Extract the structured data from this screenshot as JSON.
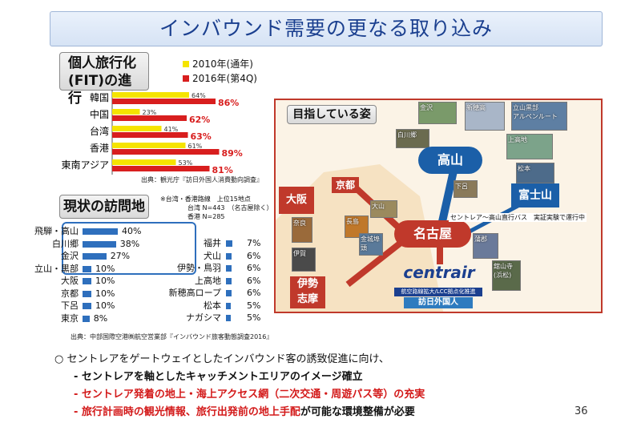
{
  "title": "インバウンド需要の更なる取り込み",
  "fit": {
    "heading_line1": "個人旅行化",
    "heading_line2": "(FIT)の進行",
    "legend": [
      {
        "label": "2010年(通年)",
        "color": "#f5e400"
      },
      {
        "label": "2016年(第4Q)",
        "color": "#d81e1e"
      }
    ],
    "source": "出典：観光庁『訪日外国人消費動向調査』"
  },
  "chart_data": {
    "type": "bar",
    "orientation": "horizontal",
    "categories": [
      "韓国",
      "中国",
      "台湾",
      "香港",
      "東南アジア"
    ],
    "series": [
      {
        "name": "2010年(通年)",
        "color": "#f5e400",
        "values": [
          64,
          23,
          41,
          61,
          53
        ],
        "labels": [
          "64%",
          "23%",
          "41%",
          "61%",
          "53%"
        ]
      },
      {
        "name": "2016年(第4Q)",
        "color": "#d81e1e",
        "values": [
          86,
          62,
          63,
          89,
          81
        ],
        "labels": [
          "86%",
          "62%",
          "63%",
          "89%",
          "81%"
        ]
      }
    ],
    "xlim": [
      0,
      100
    ]
  },
  "visit": {
    "heading": "現状の訪問地",
    "note": [
      "※台湾・香港路線　上位15地点",
      "台湾 N=443　（名古屋除く）",
      "香港 N=285"
    ],
    "left": [
      {
        "name": "飛騨・高山",
        "value": 40,
        "label": "40%"
      },
      {
        "name": "白川郷",
        "value": 38,
        "label": "38%"
      },
      {
        "name": "金沢",
        "value": 27,
        "label": "27%"
      },
      {
        "name": "立山・黒部",
        "value": 10,
        "label": "10%"
      },
      {
        "name": "大阪",
        "value": 10,
        "label": "10%"
      },
      {
        "name": "京都",
        "value": 10,
        "label": "10%"
      },
      {
        "name": "下呂",
        "value": 10,
        "label": "10%"
      },
      {
        "name": "東京",
        "value": 8,
        "label": "8%"
      }
    ],
    "right": [
      {
        "name": "福井",
        "value": 7,
        "label": "7%"
      },
      {
        "name": "犬山",
        "value": 6,
        "label": "6%"
      },
      {
        "name": "伊勢・鳥羽",
        "value": 6,
        "label": "6%"
      },
      {
        "name": "上高地",
        "value": 6,
        "label": "6%"
      },
      {
        "name": "新穂高ロープ",
        "value": 6,
        "label": "6%"
      },
      {
        "name": "松本",
        "value": 5,
        "label": "5%"
      },
      {
        "name": "ナガシマ",
        "value": 5,
        "label": "5%"
      }
    ],
    "source": "出典：中部国際空港㈱航空営業部『インバウンド旅客動態調査2016』"
  },
  "map": {
    "heading": "目指している姿",
    "hubs": {
      "takayama": "高山",
      "nagoya": "名古屋",
      "fuji": "富士山",
      "ise_shima": [
        "伊勢",
        "志摩"
      ],
      "osaka": "大阪",
      "kyoto": "京都"
    },
    "photos": [
      "金沢",
      "新穂高",
      "立山黒部",
      "アルペンルート",
      "白川郷",
      "上高地",
      "松本",
      "下呂",
      "大山",
      "奈良",
      "長島",
      "金城埠頭",
      "伊賀",
      "蒲郡",
      "舘山寺(浜松)"
    ],
    "route_label": "セントレア〜高山直行バス　実証実験で運行中",
    "centrair": "centrair",
    "airport_band": "航空路線拡大/LCC拠点化推進",
    "visitors": "訪日外国人"
  },
  "bullets": {
    "main": "○ セントレアをゲートウェイとしたインバウンド客の誘致促進に向け、",
    "items": [
      {
        "text": "- セントレアを軸としたキャッチメントエリアのイメージ確立",
        "color": "black"
      },
      {
        "text": "- セントレア発着の地上・海上アクセス網（二次交通・周遊パス等）の充実",
        "color": "red"
      },
      {
        "text": "- 旅行計画時の観光情報、旅行出発前の地上手配が可能な環境整備が必要",
        "color": "mixed"
      }
    ],
    "item3_red": "- 旅行計画時の観光情報、旅行出発前の地上手配",
    "item3_black": "が可能な環境整備が必要"
  },
  "page_number": "36"
}
